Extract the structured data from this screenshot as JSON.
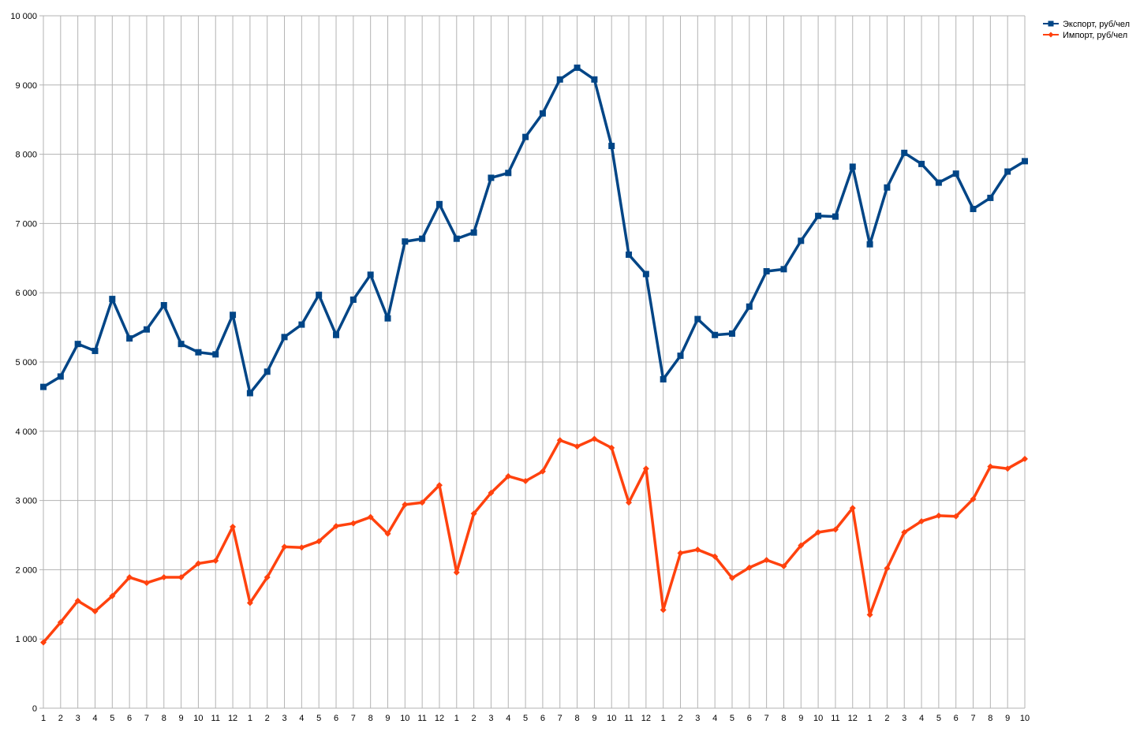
{
  "chart_data": {
    "type": "line",
    "title": "",
    "xlabel": "",
    "ylabel": "",
    "ylim": [
      0,
      10000
    ],
    "yticks": [
      0,
      1000,
      2000,
      3000,
      4000,
      5000,
      6000,
      7000,
      8000,
      9000,
      10000
    ],
    "ytick_labels": [
      "0",
      "1 000",
      "2 000",
      "3 000",
      "4 000",
      "5 000",
      "6 000",
      "7 000",
      "8 000",
      "9 000",
      "10 000"
    ],
    "grid": true,
    "legend_position": "top-right",
    "categories": [
      "1",
      "2",
      "3",
      "4",
      "5",
      "6",
      "7",
      "8",
      "9",
      "10",
      "11",
      "12",
      "1",
      "2",
      "3",
      "4",
      "5",
      "6",
      "7",
      "8",
      "9",
      "10",
      "11",
      "12",
      "1",
      "2",
      "3",
      "4",
      "5",
      "6",
      "7",
      "8",
      "9",
      "10",
      "11",
      "12",
      "1",
      "2",
      "3",
      "4",
      "5",
      "6",
      "7",
      "8",
      "9",
      "10",
      "11",
      "12",
      "1",
      "2",
      "3",
      "4",
      "5",
      "6",
      "7",
      "8",
      "9",
      "10"
    ],
    "series": [
      {
        "name": "Экспорт, руб/чел",
        "color": "#004586",
        "marker": "square",
        "values": [
          4640,
          4790,
          5260,
          5160,
          5910,
          5340,
          5470,
          5820,
          5260,
          5140,
          5110,
          5680,
          4550,
          4860,
          5360,
          5540,
          5970,
          5390,
          5900,
          6260,
          5630,
          6740,
          6780,
          7280,
          6780,
          6870,
          7660,
          7730,
          8250,
          8590,
          9080,
          9250,
          9080,
          8120,
          6550,
          6270,
          4750,
          5090,
          5620,
          5390,
          5410,
          5800,
          6310,
          6340,
          6750,
          7110,
          7100,
          7820,
          6700,
          7520,
          8020,
          7860,
          7590,
          7720,
          7210,
          7370,
          7750,
          7900
        ]
      },
      {
        "name": "Импорт, руб/чел",
        "color": "#ff420e",
        "marker": "diamond",
        "values": [
          950,
          1240,
          1550,
          1400,
          1620,
          1890,
          1810,
          1890,
          1890,
          2090,
          2130,
          2620,
          1520,
          1890,
          2330,
          2320,
          2410,
          2630,
          2670,
          2760,
          2520,
          2940,
          2970,
          3220,
          1960,
          2810,
          3110,
          3350,
          3280,
          3420,
          3870,
          3780,
          3890,
          3760,
          2970,
          3460,
          1420,
          2240,
          2290,
          2190,
          1880,
          2030,
          2140,
          2050,
          2350,
          2540,
          2580,
          2890,
          1350,
          2020,
          2540,
          2700,
          2780,
          2770,
          3020,
          3490,
          3460,
          3600
        ]
      }
    ]
  }
}
